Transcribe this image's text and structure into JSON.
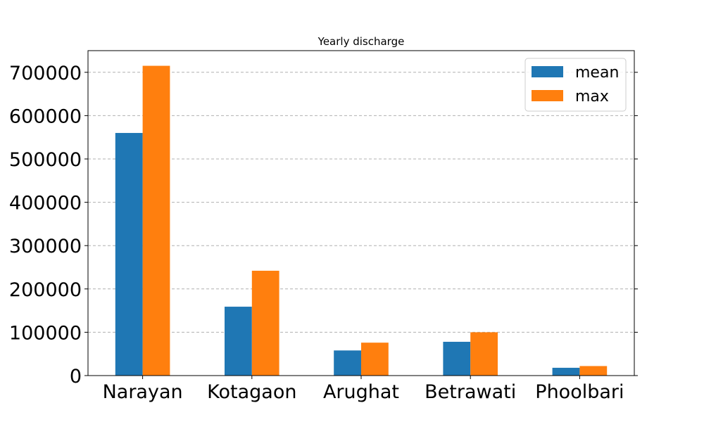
{
  "chart_data": {
    "type": "bar",
    "title": "Yearly discharge",
    "xlabel": "",
    "ylabel": "",
    "categories": [
      "Narayan",
      "Kotagaon",
      "Arughat",
      "Betrawati",
      "Phoolbari"
    ],
    "series": [
      {
        "name": "mean",
        "color": "#1f77b4",
        "values": [
          560000,
          159000,
          58000,
          78000,
          18000
        ]
      },
      {
        "name": "max",
        "color": "#ff7f0e",
        "values": [
          715000,
          242000,
          76000,
          100000,
          22000
        ]
      }
    ],
    "ylim": [
      0,
      750000
    ],
    "yticks": [
      0,
      100000,
      200000,
      300000,
      400000,
      500000,
      600000,
      700000
    ],
    "ytick_labels": [
      "0",
      "100000",
      "200000",
      "300000",
      "400000",
      "500000",
      "600000",
      "700000"
    ],
    "grid": true,
    "grid_axis": "y",
    "legend_position": "top-right"
  }
}
